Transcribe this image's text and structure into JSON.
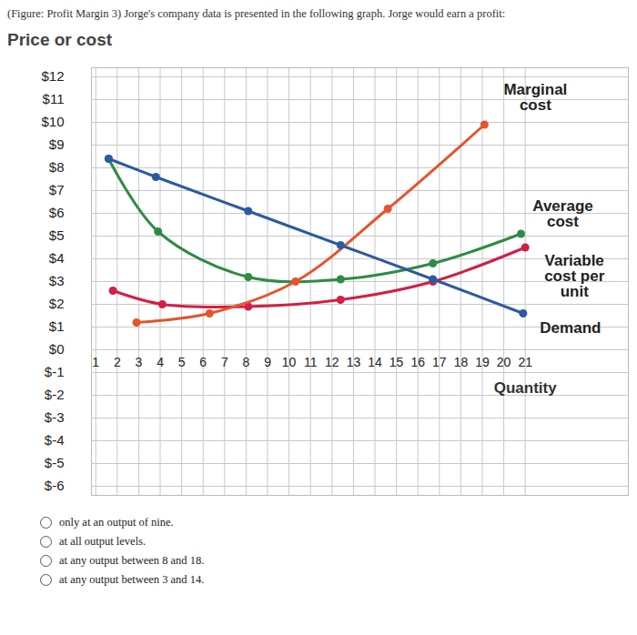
{
  "chart_data": {
    "type": "line",
    "title": "(Figure: Profit Margin 3) Jorge's company data is presented in the following graph. Jorge would earn a profit:",
    "y_label": "Price or cost",
    "x_label": "Quantity",
    "xlim": [
      0.8,
      25.8
    ],
    "ylim": [
      -6.4,
      12.4
    ],
    "xticks": [
      1,
      2,
      3,
      4,
      5,
      6,
      7,
      8,
      9,
      10,
      11,
      12,
      13,
      14,
      15,
      16,
      17,
      18,
      19,
      20,
      21
    ],
    "yticks": [
      {
        "value": 12,
        "label": "$12"
      },
      {
        "value": 11,
        "label": "$11"
      },
      {
        "value": 10,
        "label": "$10"
      },
      {
        "value": 9,
        "label": "$9"
      },
      {
        "value": 8,
        "label": "$8"
      },
      {
        "value": 7,
        "label": "$7"
      },
      {
        "value": 6,
        "label": "$6"
      },
      {
        "value": 5,
        "label": "$5"
      },
      {
        "value": 4,
        "label": "$4"
      },
      {
        "value": 3,
        "label": "$3"
      },
      {
        "value": 2,
        "label": "$2"
      },
      {
        "value": 1,
        "label": "$1"
      },
      {
        "value": 0,
        "label": "$0"
      },
      {
        "value": -1,
        "label": "$-1"
      },
      {
        "value": -2,
        "label": "$-2"
      },
      {
        "value": -3,
        "label": "$-3"
      },
      {
        "value": -4,
        "label": "$-4"
      },
      {
        "value": -5,
        "label": "$-5"
      },
      {
        "value": -6,
        "label": "$-6"
      }
    ],
    "grid": true,
    "series": [
      {
        "name": "Average cost",
        "color": "#2e8b45",
        "marker": "circle",
        "x": [
          1.6,
          3.9,
          8.1,
          12.4,
          16.7,
          20.8
        ],
        "values": [
          8.4,
          5.2,
          3.2,
          3.1,
          3.8,
          5.1
        ]
      },
      {
        "name": "Variable cost per unit",
        "color": "#d21f44",
        "marker": "circle",
        "x": [
          1.8,
          4.1,
          8.1,
          12.4,
          16.7,
          21.0
        ],
        "values": [
          2.6,
          2.0,
          1.9,
          2.2,
          3.0,
          4.5
        ]
      },
      {
        "name": "Marginal cost",
        "color": "#e5542c",
        "marker": "circle",
        "x": [
          2.9,
          6.3,
          10.3,
          14.6,
          19.1
        ],
        "values": [
          1.2,
          1.6,
          3.0,
          6.2,
          9.9
        ]
      },
      {
        "name": "Demand",
        "color": "#2c5aa0",
        "marker": "circle",
        "x": [
          1.6,
          3.8,
          8.1,
          12.4,
          16.7,
          20.9
        ],
        "values": [
          8.4,
          7.6,
          6.1,
          4.6,
          3.1,
          1.6
        ]
      }
    ],
    "choices": [
      "only at an output of nine.",
      "at all output levels.",
      "at any output between 8 and 18.",
      "at any output between 3 and 14."
    ]
  }
}
